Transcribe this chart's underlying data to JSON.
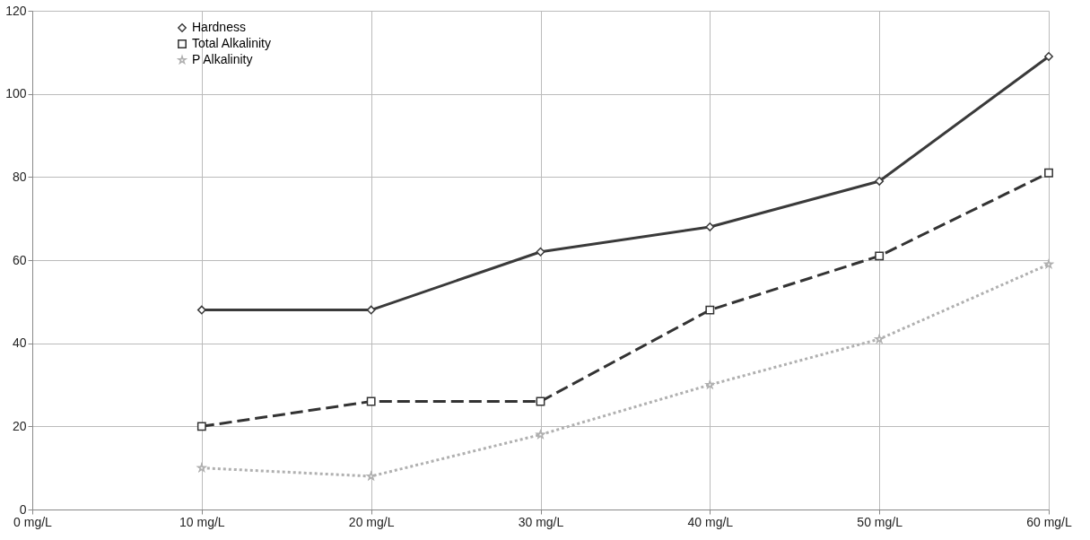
{
  "chart_data": {
    "type": "line",
    "categories": [
      "0 mg/L",
      "10 mg/L",
      "20 mg/L",
      "30 mg/L",
      "40 mg/L",
      "50 mg/L",
      "60 mg/L"
    ],
    "series": [
      {
        "name": "Hardness",
        "color": "#3a3a3a",
        "marker": "diamond",
        "line_style": "solid",
        "values": [
          null,
          48,
          48,
          62,
          68,
          79,
          109
        ]
      },
      {
        "name": "Total Alkalinity",
        "color": "#333333",
        "marker": "square",
        "line_style": "dashed",
        "values": [
          null,
          20,
          26,
          26,
          48,
          61,
          81
        ]
      },
      {
        "name": "P Alkalinity",
        "color": "#b0b0b0",
        "marker": "star",
        "line_style": "dotted",
        "values": [
          null,
          10,
          8,
          18,
          30,
          41,
          59
        ]
      }
    ],
    "ylim": [
      0,
      120
    ],
    "yticks": [
      0,
      20,
      40,
      60,
      80,
      100,
      120
    ],
    "grid": true,
    "legend": "top left"
  }
}
